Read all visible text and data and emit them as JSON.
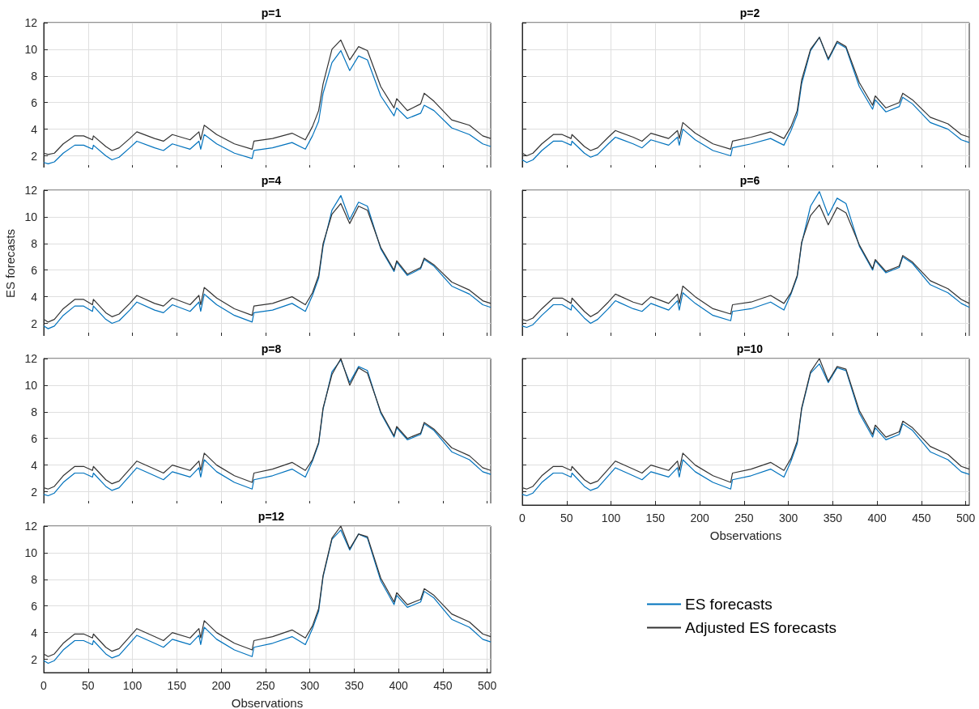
{
  "chart_data": [
    {
      "type": "line",
      "title": "p=1",
      "x": [
        0,
        5,
        12,
        22,
        35,
        45,
        55,
        56,
        70,
        77,
        85,
        97,
        105,
        125,
        135,
        145,
        165,
        175,
        177,
        181,
        195,
        215,
        235,
        237,
        258,
        280,
        295,
        303,
        310,
        315,
        325,
        335,
        345,
        355,
        365,
        380,
        395,
        398,
        410,
        425,
        429,
        440,
        460,
        480,
        495,
        504
      ],
      "xlim": [
        0,
        504
      ],
      "xticks": [
        0,
        50,
        100,
        150,
        200,
        250,
        300,
        350,
        400,
        450,
        500
      ],
      "ylim": [
        1,
        12
      ],
      "yticks": [
        2,
        4,
        6,
        8,
        10,
        12
      ],
      "grid": true,
      "tick_labels": "y",
      "series": [
        {
          "color": "#0072bd",
          "values": [
            1.5,
            1.4,
            1.55,
            2.2,
            2.8,
            2.8,
            2.5,
            2.8,
            2.0,
            1.7,
            1.9,
            2.6,
            3.1,
            2.6,
            2.4,
            2.9,
            2.5,
            3.1,
            2.5,
            3.6,
            2.9,
            2.2,
            1.8,
            2.4,
            2.6,
            3.0,
            2.5,
            3.5,
            4.6,
            6.7,
            9.0,
            9.9,
            8.4,
            9.5,
            9.2,
            6.5,
            5.0,
            5.6,
            4.8,
            5.2,
            5.8,
            5.4,
            4.1,
            3.6,
            2.9,
            2.7
          ]
        },
        {
          "color": "#333333",
          "values": [
            2.2,
            2.1,
            2.2,
            2.9,
            3.5,
            3.5,
            3.2,
            3.5,
            2.7,
            2.4,
            2.6,
            3.3,
            3.8,
            3.3,
            3.1,
            3.6,
            3.2,
            3.8,
            3.2,
            4.3,
            3.6,
            2.9,
            2.5,
            3.1,
            3.3,
            3.7,
            3.2,
            4.2,
            5.4,
            7.4,
            10.0,
            10.7,
            9.2,
            10.2,
            9.9,
            7.2,
            5.6,
            6.3,
            5.4,
            5.9,
            6.7,
            6.1,
            4.7,
            4.3,
            3.5,
            3.3
          ]
        }
      ]
    },
    {
      "type": "line",
      "title": "p=2",
      "x": [
        0,
        5,
        12,
        22,
        35,
        45,
        55,
        56,
        70,
        77,
        85,
        97,
        105,
        125,
        135,
        145,
        165,
        175,
        177,
        181,
        195,
        215,
        235,
        237,
        258,
        280,
        295,
        303,
        310,
        315,
        325,
        335,
        345,
        355,
        365,
        380,
        395,
        398,
        410,
        425,
        429,
        440,
        460,
        480,
        495,
        504
      ],
      "xlim": [
        0,
        504
      ],
      "xticks": [
        0,
        50,
        100,
        150,
        200,
        250,
        300,
        350,
        400,
        450,
        500
      ],
      "ylim": [
        1,
        12
      ],
      "yticks": [
        2,
        4,
        6,
        8,
        10,
        12
      ],
      "grid": true,
      "tick_labels": false,
      "series": [
        {
          "color": "#0072bd",
          "values": [
            1.7,
            1.5,
            1.7,
            2.4,
            3.1,
            3.1,
            2.8,
            3.1,
            2.2,
            1.9,
            2.1,
            2.9,
            3.4,
            2.9,
            2.6,
            3.2,
            2.8,
            3.4,
            2.8,
            4.0,
            3.2,
            2.4,
            2.0,
            2.6,
            2.9,
            3.3,
            2.8,
            3.9,
            5.1,
            7.4,
            9.9,
            10.9,
            9.2,
            10.5,
            10.1,
            7.2,
            5.5,
            6.2,
            5.3,
            5.7,
            6.4,
            5.9,
            4.5,
            4.0,
            3.2,
            3.0
          ]
        },
        {
          "color": "#333333",
          "values": [
            2.2,
            2.0,
            2.2,
            2.9,
            3.6,
            3.6,
            3.3,
            3.6,
            2.7,
            2.4,
            2.6,
            3.4,
            3.9,
            3.4,
            3.1,
            3.7,
            3.3,
            3.9,
            3.3,
            4.5,
            3.7,
            2.9,
            2.5,
            3.1,
            3.4,
            3.8,
            3.3,
            4.2,
            5.4,
            7.7,
            10.0,
            10.9,
            9.3,
            10.6,
            10.2,
            7.5,
            5.8,
            6.5,
            5.6,
            6.0,
            6.7,
            6.2,
            4.9,
            4.4,
            3.6,
            3.4
          ]
        }
      ]
    },
    {
      "type": "line",
      "title": "p=4",
      "ylabel": "ES forecasts",
      "x": [
        0,
        5,
        12,
        22,
        35,
        45,
        55,
        56,
        70,
        77,
        85,
        97,
        105,
        125,
        135,
        145,
        165,
        175,
        177,
        181,
        195,
        215,
        235,
        237,
        258,
        280,
        295,
        303,
        310,
        315,
        325,
        335,
        345,
        355,
        365,
        380,
        395,
        398,
        410,
        425,
        429,
        440,
        460,
        480,
        495,
        504
      ],
      "xlim": [
        0,
        504
      ],
      "xticks": [
        0,
        50,
        100,
        150,
        200,
        250,
        300,
        350,
        400,
        450,
        500
      ],
      "ylim": [
        1,
        12
      ],
      "yticks": [
        2,
        4,
        6,
        8,
        10,
        12
      ],
      "grid": true,
      "tick_labels": "y",
      "series": [
        {
          "color": "#0072bd",
          "values": [
            1.8,
            1.6,
            1.8,
            2.6,
            3.3,
            3.3,
            2.9,
            3.3,
            2.3,
            2.0,
            2.2,
            3.0,
            3.6,
            3.0,
            2.8,
            3.4,
            2.9,
            3.6,
            2.9,
            4.2,
            3.4,
            2.6,
            2.1,
            2.8,
            3.0,
            3.5,
            2.9,
            4.1,
            5.4,
            7.8,
            10.5,
            11.6,
            9.8,
            11.1,
            10.8,
            7.6,
            5.9,
            6.6,
            5.6,
            6.1,
            6.8,
            6.3,
            4.8,
            4.2,
            3.4,
            3.2
          ]
        },
        {
          "color": "#333333",
          "values": [
            2.3,
            2.1,
            2.3,
            3.1,
            3.8,
            3.8,
            3.4,
            3.8,
            2.8,
            2.5,
            2.7,
            3.5,
            4.1,
            3.5,
            3.3,
            3.9,
            3.4,
            4.1,
            3.4,
            4.7,
            3.9,
            3.1,
            2.6,
            3.3,
            3.5,
            4.0,
            3.4,
            4.3,
            5.6,
            8.0,
            10.2,
            11.0,
            9.5,
            10.8,
            10.5,
            7.7,
            6.0,
            6.7,
            5.7,
            6.2,
            6.9,
            6.4,
            5.1,
            4.5,
            3.7,
            3.5
          ]
        }
      ]
    },
    {
      "type": "line",
      "title": "p=6",
      "x": [
        0,
        5,
        12,
        22,
        35,
        45,
        55,
        56,
        70,
        77,
        85,
        97,
        105,
        125,
        135,
        145,
        165,
        175,
        177,
        181,
        195,
        215,
        235,
        237,
        258,
        280,
        295,
        303,
        310,
        315,
        325,
        335,
        345,
        355,
        365,
        380,
        395,
        398,
        410,
        425,
        429,
        440,
        460,
        480,
        495,
        504
      ],
      "xlim": [
        0,
        504
      ],
      "xticks": [
        0,
        50,
        100,
        150,
        200,
        250,
        300,
        350,
        400,
        450,
        500
      ],
      "ylim": [
        1,
        12
      ],
      "yticks": [
        2,
        4,
        6,
        8,
        10,
        12
      ],
      "grid": true,
      "tick_labels": false,
      "series": [
        {
          "color": "#0072bd",
          "values": [
            1.8,
            1.7,
            1.9,
            2.6,
            3.4,
            3.4,
            3.0,
            3.4,
            2.4,
            2.0,
            2.3,
            3.1,
            3.7,
            3.1,
            2.9,
            3.5,
            3.0,
            3.7,
            3.0,
            4.3,
            3.5,
            2.6,
            2.2,
            2.9,
            3.1,
            3.6,
            3.0,
            4.2,
            5.5,
            8.0,
            10.8,
            11.9,
            10.1,
            11.4,
            11.0,
            7.8,
            6.0,
            6.7,
            5.8,
            6.2,
            7.0,
            6.5,
            4.9,
            4.3,
            3.5,
            3.2
          ]
        },
        {
          "color": "#333333",
          "values": [
            2.3,
            2.2,
            2.4,
            3.1,
            3.9,
            3.9,
            3.5,
            3.9,
            2.9,
            2.5,
            2.8,
            3.6,
            4.2,
            3.6,
            3.4,
            4.0,
            3.5,
            4.2,
            3.5,
            4.8,
            4.0,
            3.1,
            2.7,
            3.4,
            3.6,
            4.1,
            3.5,
            4.3,
            5.6,
            8.1,
            10.1,
            10.9,
            9.4,
            10.7,
            10.3,
            7.9,
            6.1,
            6.8,
            5.9,
            6.3,
            7.1,
            6.6,
            5.2,
            4.6,
            3.8,
            3.5
          ]
        }
      ]
    },
    {
      "type": "line",
      "title": "p=8",
      "x": [
        0,
        5,
        12,
        22,
        35,
        45,
        55,
        56,
        70,
        77,
        85,
        97,
        105,
        125,
        135,
        145,
        165,
        175,
        177,
        181,
        195,
        215,
        235,
        237,
        258,
        280,
        295,
        303,
        310,
        315,
        325,
        335,
        345,
        355,
        365,
        380,
        395,
        398,
        410,
        425,
        429,
        440,
        460,
        480,
        495,
        504
      ],
      "xlim": [
        0,
        504
      ],
      "xticks": [
        0,
        50,
        100,
        150,
        200,
        250,
        300,
        350,
        400,
        450,
        500
      ],
      "ylim": [
        1,
        12
      ],
      "yticks": [
        2,
        4,
        6,
        8,
        10,
        12
      ],
      "grid": true,
      "tick_labels": "y",
      "series": [
        {
          "color": "#0072bd",
          "values": [
            1.8,
            1.7,
            1.9,
            2.7,
            3.4,
            3.4,
            3.1,
            3.4,
            2.4,
            2.1,
            2.3,
            3.2,
            3.8,
            3.2,
            2.9,
            3.5,
            3.1,
            3.8,
            3.1,
            4.4,
            3.5,
            2.7,
            2.2,
            2.9,
            3.2,
            3.7,
            3.1,
            4.3,
            5.6,
            8.2,
            11.0,
            11.9,
            10.2,
            11.4,
            11.1,
            7.9,
            6.1,
            6.8,
            5.9,
            6.3,
            7.1,
            6.6,
            5.0,
            4.4,
            3.5,
            3.3
          ]
        },
        {
          "color": "#333333",
          "values": [
            2.3,
            2.2,
            2.4,
            3.2,
            3.9,
            3.9,
            3.6,
            3.9,
            2.9,
            2.6,
            2.8,
            3.7,
            4.3,
            3.7,
            3.4,
            4.0,
            3.6,
            4.3,
            3.6,
            4.9,
            4.0,
            3.2,
            2.7,
            3.4,
            3.7,
            4.2,
            3.6,
            4.4,
            5.7,
            8.3,
            10.8,
            12.0,
            10.0,
            11.3,
            10.9,
            8.0,
            6.2,
            6.9,
            6.0,
            6.4,
            7.2,
            6.7,
            5.3,
            4.7,
            3.8,
            3.6
          ]
        }
      ]
    },
    {
      "type": "line",
      "title": "p=10",
      "xlabel": "Observations",
      "x": [
        0,
        5,
        12,
        22,
        35,
        45,
        55,
        56,
        70,
        77,
        85,
        97,
        105,
        125,
        135,
        145,
        165,
        175,
        177,
        181,
        195,
        215,
        235,
        237,
        258,
        280,
        295,
        303,
        310,
        315,
        325,
        335,
        345,
        355,
        365,
        380,
        395,
        398,
        410,
        425,
        429,
        440,
        460,
        480,
        495,
        504
      ],
      "xlim": [
        0,
        504
      ],
      "xticks": [
        0,
        50,
        100,
        150,
        200,
        250,
        300,
        350,
        400,
        450,
        500
      ],
      "ylim": [
        1,
        12
      ],
      "yticks": [
        2,
        4,
        6,
        8,
        10,
        12
      ],
      "grid": true,
      "tick_labels": "x",
      "series": [
        {
          "color": "#0072bd",
          "values": [
            1.8,
            1.7,
            1.9,
            2.7,
            3.4,
            3.4,
            3.1,
            3.4,
            2.4,
            2.1,
            2.3,
            3.2,
            3.8,
            3.2,
            2.9,
            3.5,
            3.1,
            3.8,
            3.1,
            4.4,
            3.5,
            2.7,
            2.2,
            2.9,
            3.2,
            3.7,
            3.1,
            4.3,
            5.6,
            8.2,
            10.9,
            11.6,
            10.2,
            11.3,
            11.1,
            7.9,
            6.1,
            6.8,
            5.9,
            6.3,
            7.1,
            6.6,
            5.0,
            4.4,
            3.5,
            3.3
          ]
        },
        {
          "color": "#333333",
          "values": [
            2.3,
            2.2,
            2.4,
            3.2,
            3.9,
            3.9,
            3.6,
            3.9,
            2.9,
            2.6,
            2.8,
            3.7,
            4.3,
            3.7,
            3.4,
            4.0,
            3.6,
            4.3,
            3.6,
            4.9,
            4.0,
            3.2,
            2.7,
            3.4,
            3.7,
            4.2,
            3.6,
            4.5,
            5.8,
            8.3,
            11.0,
            12.0,
            10.3,
            11.4,
            11.2,
            8.1,
            6.3,
            7.0,
            6.1,
            6.5,
            7.3,
            6.8,
            5.4,
            4.8,
            3.9,
            3.7
          ]
        }
      ]
    },
    {
      "type": "line",
      "title": "p=12",
      "xlabel": "Observations",
      "x": [
        0,
        5,
        12,
        22,
        35,
        45,
        55,
        56,
        70,
        77,
        85,
        97,
        105,
        125,
        135,
        145,
        165,
        175,
        177,
        181,
        195,
        215,
        235,
        237,
        258,
        280,
        295,
        303,
        310,
        315,
        325,
        335,
        345,
        355,
        365,
        380,
        395,
        398,
        410,
        425,
        429,
        440,
        460,
        480,
        495,
        504
      ],
      "xlim": [
        0,
        504
      ],
      "xticks": [
        0,
        50,
        100,
        150,
        200,
        250,
        300,
        350,
        400,
        450,
        500
      ],
      "ylim": [
        1,
        12
      ],
      "yticks": [
        2,
        4,
        6,
        8,
        10,
        12
      ],
      "grid": true,
      "legend": "right",
      "series": [
        {
          "name": "ES forecasts",
          "color": "#0072bd",
          "values": [
            1.9,
            1.7,
            1.9,
            2.7,
            3.4,
            3.4,
            3.1,
            3.4,
            2.4,
            2.1,
            2.3,
            3.2,
            3.8,
            3.2,
            2.9,
            3.5,
            3.1,
            3.8,
            3.1,
            4.4,
            3.5,
            2.7,
            2.2,
            2.9,
            3.2,
            3.7,
            3.1,
            4.3,
            5.6,
            8.2,
            11.0,
            11.7,
            10.2,
            11.4,
            11.1,
            7.9,
            6.1,
            6.8,
            5.9,
            6.3,
            7.1,
            6.6,
            5.0,
            4.4,
            3.5,
            3.3
          ]
        },
        {
          "name": "Adjusted ES forecasts",
          "color": "#333333",
          "values": [
            2.4,
            2.2,
            2.4,
            3.2,
            3.9,
            3.9,
            3.6,
            3.9,
            2.9,
            2.6,
            2.8,
            3.7,
            4.3,
            3.7,
            3.4,
            4.0,
            3.6,
            4.3,
            3.6,
            4.9,
            4.0,
            3.2,
            2.7,
            3.4,
            3.7,
            4.2,
            3.6,
            4.5,
            5.8,
            8.3,
            11.1,
            12.0,
            10.3,
            11.4,
            11.2,
            8.1,
            6.3,
            7.0,
            6.1,
            6.5,
            7.3,
            6.8,
            5.4,
            4.8,
            3.9,
            3.7
          ]
        }
      ]
    }
  ]
}
